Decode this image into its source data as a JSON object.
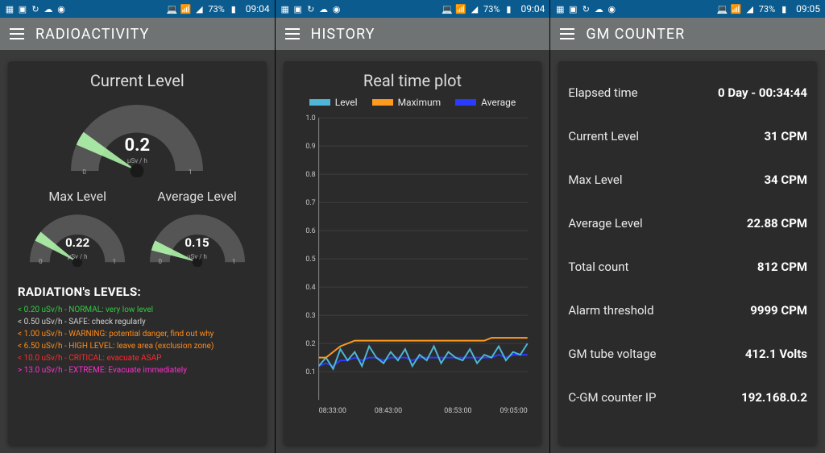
{
  "statusbar": {
    "battery_text": "73%",
    "time_left": "09:04",
    "time_mid": "09:04",
    "time_right": "09:05",
    "bg_color": "#0b5b8e"
  },
  "appbars": {
    "left": "RADIOACTIVITY",
    "mid": "HISTORY",
    "right": "GM COUNTER",
    "bg_color": "#6f7374"
  },
  "radioactivity": {
    "current_label": "Current Level",
    "max_label": "Max Level",
    "avg_label": "Average Level",
    "unit": "µSv / h",
    "scale_min": "0",
    "scale_max": "1",
    "current": {
      "value": 0.2,
      "display": "0.2"
    },
    "max": {
      "value": 0.22,
      "display": "0.22"
    },
    "avg": {
      "value": 0.15,
      "display": "0.15"
    },
    "gauge": {
      "track_color": "#555555",
      "needle_color": "#b6ffb0",
      "center_color": "#1a1a1a"
    },
    "levels_heading": "RADIATION's LEVELS:",
    "levels": [
      {
        "text": "< 0.20 uSv/h - NORMAL: very low level",
        "color": "#2ecc40"
      },
      {
        "text": "< 0.50 uSv/h - SAFE: check regularly",
        "color": "#d0d0d0"
      },
      {
        "text": "< 1.00 uSv/h - WARNING: potential danger, find out why",
        "color": "#ff8c1a"
      },
      {
        "text": "< 6.50 uSv/h - HIGH LEVEL: leave area (exclusion zone)",
        "color": "#ff8c1a"
      },
      {
        "text": "< 10.0 uSv/h - CRITICAL: evacuate ASAP",
        "color": "#ff2a2a"
      },
      {
        "text": "> 13.0 uSv/h - EXTREME: Evacuate immediately",
        "color": "#ff2fd0"
      }
    ]
  },
  "history": {
    "title": "Real time plot",
    "legend": {
      "level": {
        "label": "Level",
        "color": "#4fb6d8"
      },
      "maximum": {
        "label": "Maximum",
        "color": "#ff9a1f"
      },
      "average": {
        "label": "Average",
        "color": "#2a3bff"
      }
    },
    "chart": {
      "ylim": [
        0,
        1.0
      ],
      "ytick_step": 0.1,
      "yticks": [
        "0.1",
        "0.2",
        "0.3",
        "0.4",
        "0.5",
        "0.6",
        "0.7",
        "0.8",
        "0.9",
        "1.0"
      ],
      "xticks": [
        "08:33:00",
        "08:43:00",
        "08:53:00",
        "09:05:00"
      ],
      "grid_color": "#3f3f3f",
      "axis_color": "#888888",
      "bg_color": "#2b2b2b",
      "text_color": "#c8c8c8",
      "font_size": 9,
      "series": {
        "maximum": {
          "color": "#ff9a1f",
          "width": 2,
          "y": [
            0.15,
            0.15,
            0.17,
            0.19,
            0.2,
            0.21,
            0.21,
            0.21,
            0.21,
            0.21,
            0.21,
            0.21,
            0.21,
            0.21,
            0.21,
            0.21,
            0.21,
            0.21,
            0.21,
            0.21,
            0.21,
            0.21,
            0.21,
            0.21,
            0.22,
            0.22,
            0.22,
            0.22,
            0.22,
            0.22
          ]
        },
        "level": {
          "color": "#4fb6d8",
          "width": 2,
          "y": [
            0.12,
            0.15,
            0.11,
            0.18,
            0.14,
            0.17,
            0.12,
            0.19,
            0.15,
            0.13,
            0.17,
            0.14,
            0.18,
            0.12,
            0.16,
            0.14,
            0.19,
            0.13,
            0.17,
            0.15,
            0.14,
            0.18,
            0.13,
            0.16,
            0.15,
            0.19,
            0.14,
            0.17,
            0.16,
            0.2
          ]
        },
        "average": {
          "color": "#2a3bff",
          "width": 2,
          "y": [
            0.12,
            0.13,
            0.12,
            0.14,
            0.14,
            0.15,
            0.14,
            0.15,
            0.15,
            0.14,
            0.15,
            0.15,
            0.15,
            0.14,
            0.15,
            0.15,
            0.15,
            0.15,
            0.15,
            0.15,
            0.15,
            0.15,
            0.15,
            0.15,
            0.15,
            0.16,
            0.15,
            0.16,
            0.16,
            0.16
          ]
        }
      }
    }
  },
  "gm": {
    "rows": [
      {
        "k": "Elapsed time",
        "v": "0 Day - 00:34:44"
      },
      {
        "k": "Current Level",
        "v": "31 CPM"
      },
      {
        "k": "Max Level",
        "v": "34 CPM"
      },
      {
        "k": "Average Level",
        "v": "22.88 CPM"
      },
      {
        "k": "Total count",
        "v": "812 CPM"
      },
      {
        "k": "Alarm threshold",
        "v": "9999 CPM"
      },
      {
        "k": "GM tube voltage",
        "v": "412.1 Volts"
      },
      {
        "k": "C-GM counter IP",
        "v": "192.168.0.2"
      }
    ]
  }
}
